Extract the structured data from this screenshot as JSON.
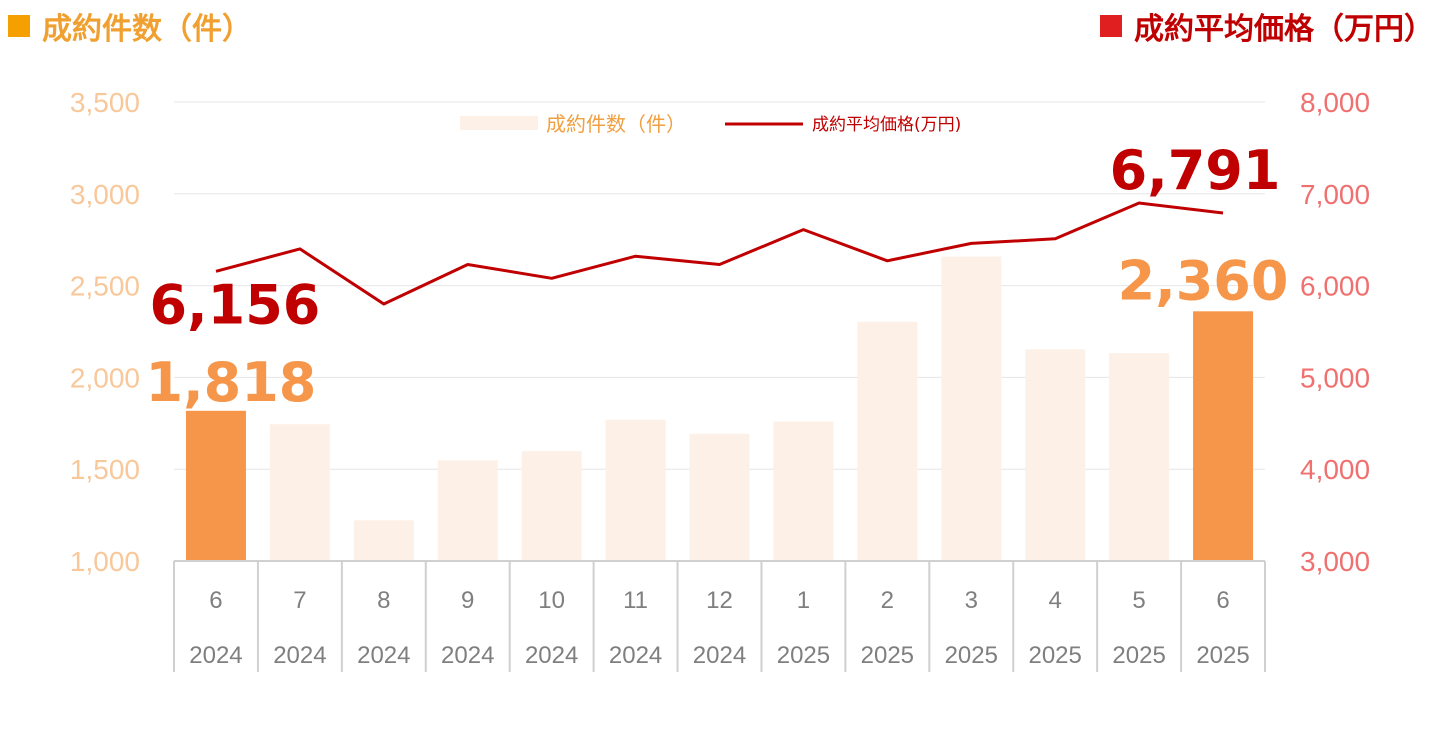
{
  "titles": {
    "left": "成約件数（件）",
    "right": "成約平均価格（万円）"
  },
  "legend": {
    "bar": "成約件数（件）",
    "line": "成約平均価格(万円)"
  },
  "colors": {
    "bar_highlight": "#f5964a",
    "bar_normal": "#fdf0e6",
    "line": "#c00000",
    "left_axis": "#f8c89a",
    "right_axis": "#f07070",
    "left_title": "#f0a030",
    "right_title": "#c00000"
  },
  "chart_data": {
    "type": "bar",
    "categories": [
      "6",
      "7",
      "8",
      "9",
      "10",
      "11",
      "12",
      "1",
      "2",
      "3",
      "4",
      "5",
      "6"
    ],
    "years": [
      "2024",
      "2024",
      "2024",
      "2024",
      "2024",
      "2024",
      "2024",
      "2025",
      "2025",
      "2025",
      "2025",
      "2025",
      "2025"
    ],
    "series": [
      {
        "name": "成約件数（件）",
        "type": "bar",
        "axis": "left",
        "values": [
          1818,
          1745,
          1222,
          1548,
          1598,
          1770,
          1693,
          1760,
          2303,
          2658,
          2153,
          2132,
          2360
        ],
        "highlight": [
          true,
          false,
          false,
          false,
          false,
          false,
          false,
          false,
          false,
          false,
          false,
          false,
          true
        ]
      },
      {
        "name": "成約平均価格(万円)",
        "type": "line",
        "axis": "right",
        "values": [
          6156,
          6400,
          5800,
          6230,
          6080,
          6320,
          6230,
          6610,
          6270,
          6460,
          6510,
          6900,
          6791
        ]
      }
    ],
    "y_left": {
      "min": 1000,
      "max": 3500,
      "ticks": [
        "1,000",
        "1,500",
        "2,000",
        "2,500",
        "3,000",
        "3,500"
      ]
    },
    "y_right": {
      "min": 3000,
      "max": 8000,
      "ticks": [
        "3,000",
        "4,000",
        "5,000",
        "6,000",
        "7,000",
        "8,000"
      ]
    },
    "data_labels": {
      "bar_first": "1,818",
      "bar_last": "2,360",
      "line_first": "6,156",
      "line_last": "6,791"
    },
    "grid": true,
    "legend_position": "top-center"
  }
}
